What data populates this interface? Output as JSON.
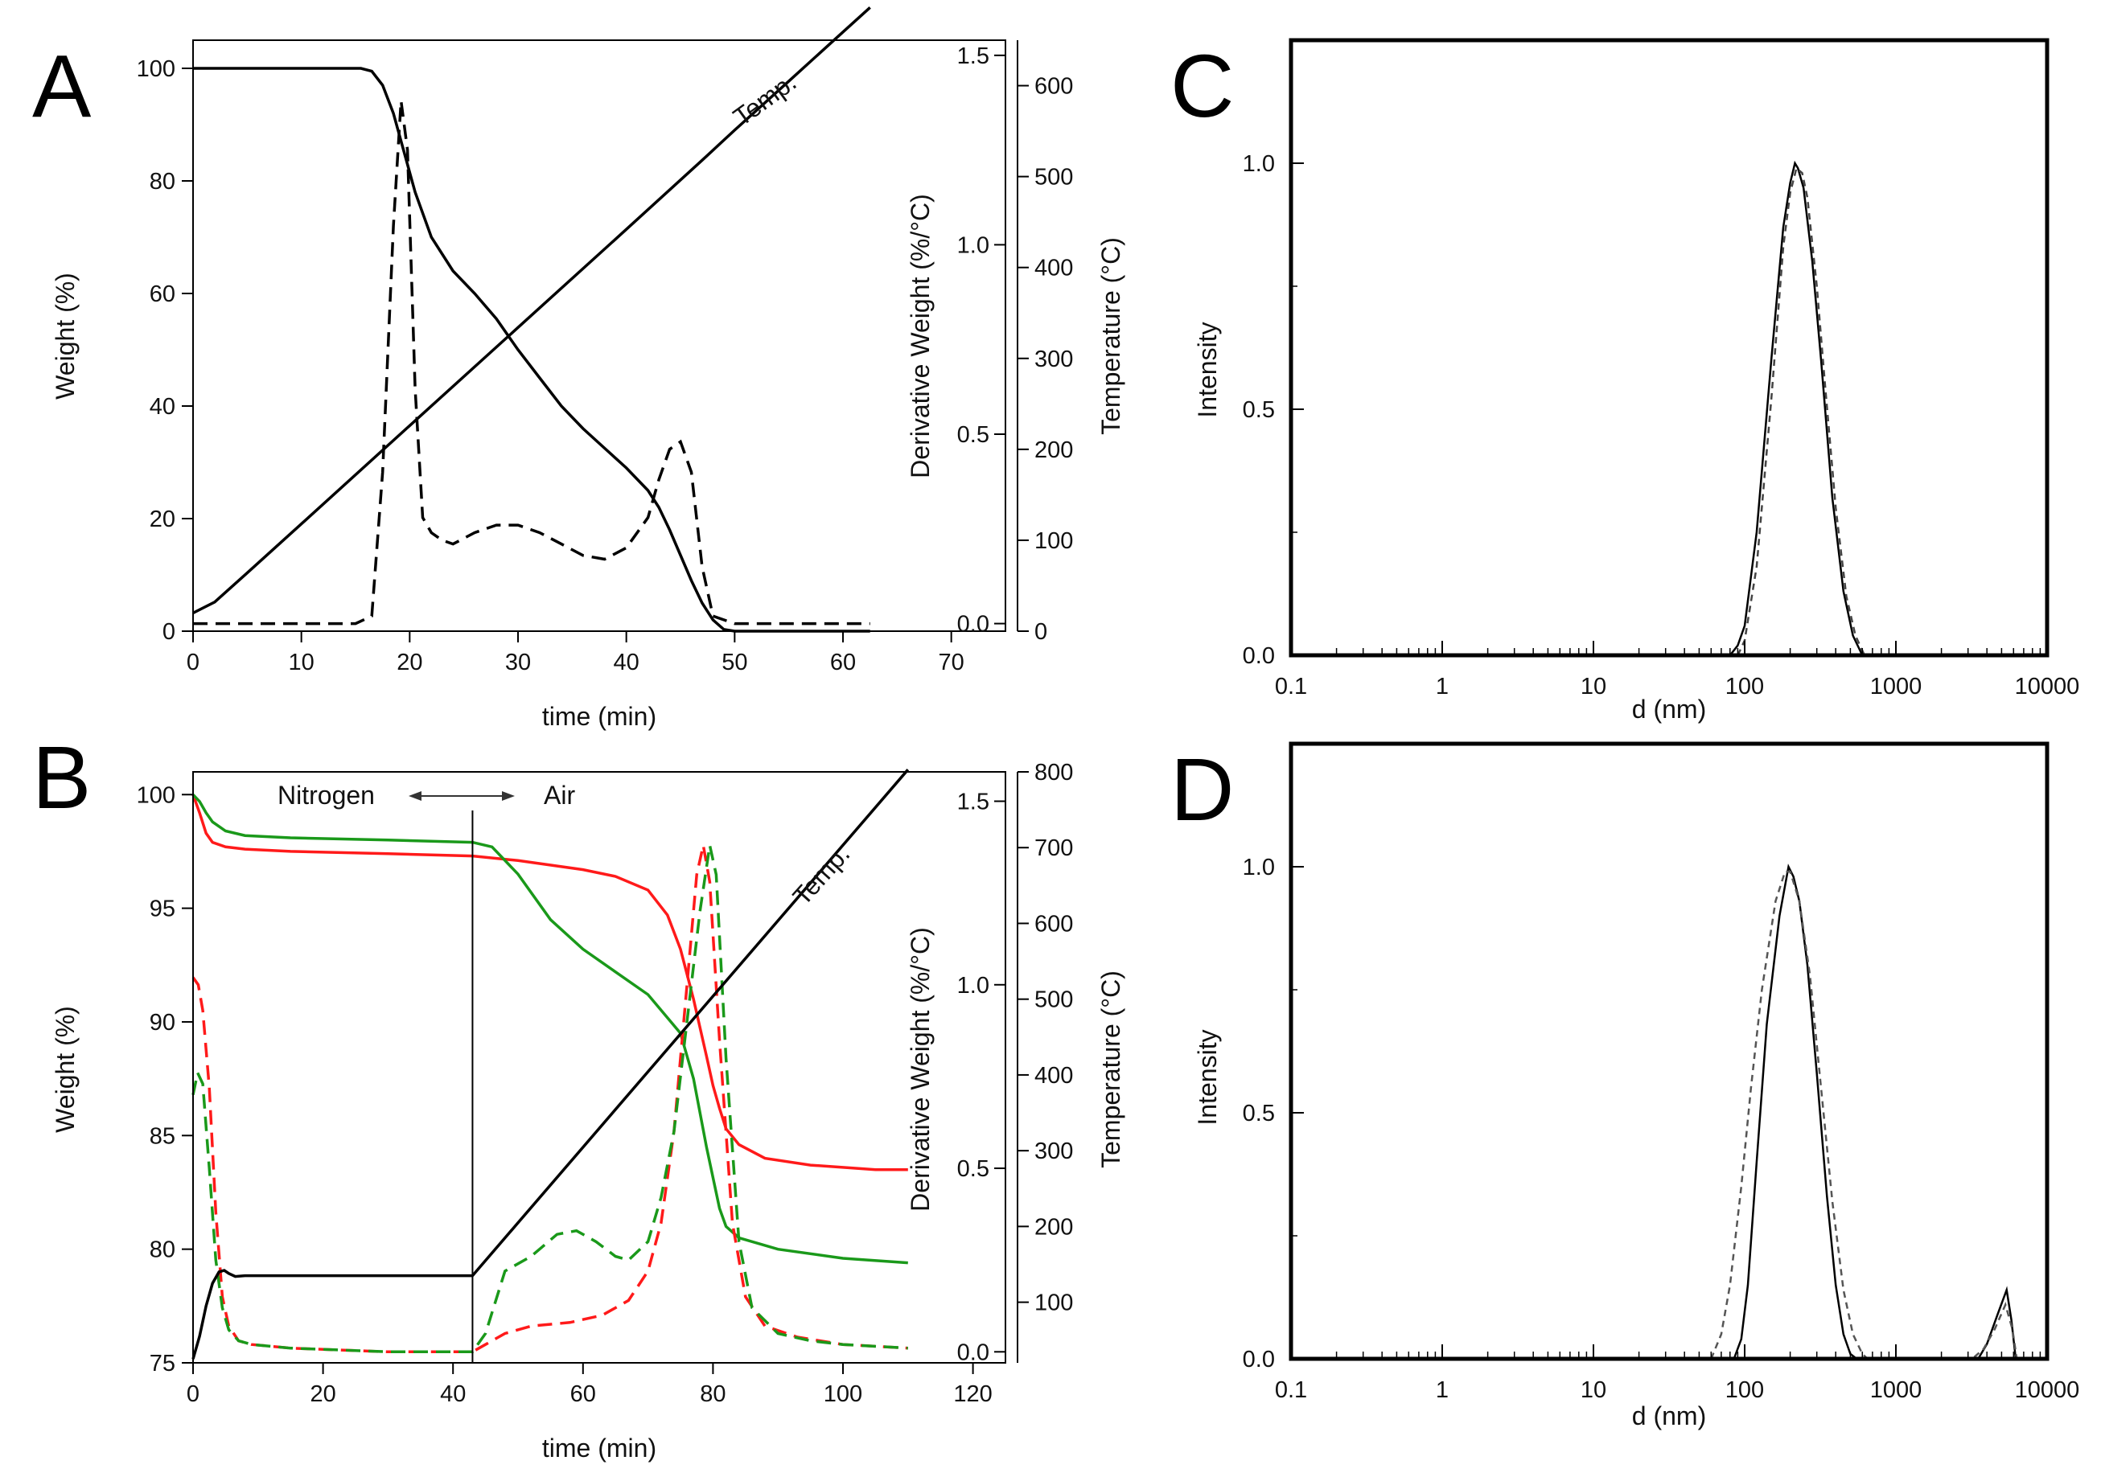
{
  "chart_data": [
    {
      "panel": "A",
      "type": "line",
      "xlabel": "time (min)",
      "ylabel": "Weight (%)",
      "y2label": "Derivative Weight (%/°C)",
      "y3label": "Temperature (°C)",
      "xlim": [
        0,
        75
      ],
      "ylim": [
        0,
        105
      ],
      "y2lim": [
        -0.02,
        1.54
      ],
      "y3lim": [
        0,
        650
      ],
      "xticks": [
        "0",
        "10",
        "20",
        "30",
        "40",
        "50",
        "60",
        "70"
      ],
      "yticks": [
        "0",
        "20",
        "40",
        "60",
        "80",
        "100"
      ],
      "y2ticks": [
        "0.0",
        "0.5",
        "1.0",
        "1.5"
      ],
      "y3ticks": [
        "0",
        "100",
        "200",
        "300",
        "400",
        "500",
        "600"
      ],
      "annotations": [
        "Temp."
      ],
      "series": [
        {
          "name": "Weight",
          "axis": "y",
          "color": "#000000",
          "dash": "solid",
          "x": [
            0,
            5,
            10,
            14,
            15.5,
            16.5,
            17.5,
            18.5,
            19.5,
            20.5,
            22,
            24,
            26,
            28,
            30,
            32,
            34,
            36,
            38,
            40,
            42,
            43,
            44,
            45,
            46,
            47,
            48,
            49,
            50,
            55,
            62.5
          ],
          "values": [
            100,
            100,
            100,
            100,
            100,
            99.5,
            97,
            92,
            85,
            78,
            70,
            64,
            60,
            55.5,
            50,
            45,
            40,
            36,
            32.5,
            29,
            25,
            22,
            18,
            13.5,
            9,
            5,
            2,
            0.3,
            0,
            0,
            0
          ]
        },
        {
          "name": "Derivative Weight",
          "axis": "y2",
          "color": "#000000",
          "dash": "dashed",
          "x": [
            0,
            5,
            10,
            15,
            16.5,
            17.5,
            18.5,
            19.2,
            19.8,
            20.5,
            21.2,
            22,
            23,
            24,
            26,
            28,
            30,
            32,
            34,
            36,
            38,
            40,
            42,
            43,
            44,
            45,
            46,
            47,
            48,
            50,
            55,
            60,
            62.5
          ],
          "values": [
            0,
            0,
            0,
            0,
            0.02,
            0.4,
            1.05,
            1.38,
            1.25,
            0.62,
            0.28,
            0.24,
            0.22,
            0.21,
            0.24,
            0.26,
            0.26,
            0.24,
            0.21,
            0.18,
            0.17,
            0.2,
            0.28,
            0.38,
            0.46,
            0.48,
            0.4,
            0.15,
            0.02,
            0,
            0,
            0,
            0
          ]
        },
        {
          "name": "Temperature",
          "axis": "y3",
          "color": "#000000",
          "dash": "solid",
          "x": [
            0,
            2,
            5,
            10,
            20,
            30,
            40,
            47,
            50,
            55,
            60,
            62.5
          ],
          "values": [
            20,
            32,
            64,
            118,
            226,
            334,
            442,
            518,
            551,
            605,
            659,
            686
          ]
        }
      ]
    },
    {
      "panel": "B",
      "type": "line",
      "xlabel": "time (min)",
      "ylabel": "Weight (%)",
      "y2label": "Derivative Weight (%/°C)",
      "y3label": "Temperature (°C)",
      "xlim": [
        0,
        125
      ],
      "ylim": [
        75,
        101
      ],
      "y2lim": [
        -0.03,
        1.58
      ],
      "y3lim": [
        20,
        800
      ],
      "xticks": [
        "0",
        "20",
        "40",
        "60",
        "80",
        "100",
        "120"
      ],
      "yticks": [
        "75",
        "80",
        "85",
        "90",
        "95",
        "100"
      ],
      "y2ticks": [
        "0.0",
        "0.5",
        "1.0",
        "1.5"
      ],
      "y3ticks": [
        "100",
        "200",
        "300",
        "400",
        "500",
        "600",
        "700",
        "800"
      ],
      "annotations": [
        "Nitrogen",
        "Air",
        "Temp."
      ],
      "switch_time": 43,
      "series": [
        {
          "name": "Weight (red)",
          "axis": "y",
          "color": "#ff1a1a",
          "dash": "solid",
          "x": [
            0,
            1,
            2,
            3,
            5,
            8,
            15,
            30,
            43,
            50,
            60,
            65,
            70,
            73,
            75,
            77,
            79,
            80,
            81,
            82,
            84,
            88,
            95,
            105,
            110
          ],
          "values": [
            100,
            99.2,
            98.3,
            97.9,
            97.7,
            97.6,
            97.5,
            97.4,
            97.3,
            97.1,
            96.7,
            96.4,
            95.8,
            94.7,
            93.2,
            91,
            88.5,
            87.2,
            86.2,
            85.3,
            84.6,
            84,
            83.7,
            83.5,
            83.5
          ]
        },
        {
          "name": "Weight (green)",
          "axis": "y",
          "color": "#1a991a",
          "dash": "solid",
          "x": [
            0,
            1,
            2,
            3,
            5,
            8,
            15,
            30,
            43,
            46,
            50,
            55,
            60,
            65,
            70,
            75,
            77,
            79,
            81,
            82,
            84,
            90,
            100,
            110
          ],
          "values": [
            100,
            99.7,
            99.2,
            98.8,
            98.4,
            98.2,
            98.1,
            98,
            97.9,
            97.7,
            96.5,
            94.5,
            93.2,
            92.2,
            91.2,
            89.5,
            87.5,
            84.5,
            81.8,
            81,
            80.5,
            80,
            79.6,
            79.4
          ]
        },
        {
          "name": "Derivative Weight (red)",
          "axis": "y2",
          "color": "#ff1a1a",
          "dash": "dashed",
          "x": [
            0,
            0.8,
            1.5,
            2.5,
            3.5,
            4.5,
            5.5,
            7,
            9,
            15,
            30,
            43,
            45,
            48,
            52,
            58,
            63,
            67,
            70,
            72,
            74,
            76,
            77.5,
            78.5,
            79.5,
            81,
            83,
            85,
            88,
            93,
            100,
            110
          ],
          "values": [
            1.02,
            1.0,
            0.93,
            0.72,
            0.38,
            0.15,
            0.07,
            0.03,
            0.02,
            0.01,
            0,
            0,
            0.02,
            0.05,
            0.07,
            0.08,
            0.1,
            0.14,
            0.22,
            0.35,
            0.6,
            1.0,
            1.3,
            1.38,
            1.28,
            0.85,
            0.35,
            0.15,
            0.07,
            0.04,
            0.02,
            0.01
          ]
        },
        {
          "name": "Derivative Weight (green)",
          "axis": "y2",
          "color": "#1a991a",
          "dash": "dashed",
          "x": [
            0,
            0.7,
            1.5,
            2.5,
            3.5,
            4.5,
            5.5,
            7,
            9,
            15,
            30,
            43,
            45,
            48,
            52,
            56,
            59,
            62,
            65,
            67,
            70,
            72,
            74,
            76,
            78,
            79.5,
            80.5,
            82,
            84,
            86,
            90,
            95,
            100,
            110
          ],
          "values": [
            0.7,
            0.76,
            0.73,
            0.5,
            0.25,
            0.12,
            0.06,
            0.03,
            0.02,
            0.01,
            0,
            0,
            0.05,
            0.22,
            0.26,
            0.32,
            0.33,
            0.3,
            0.26,
            0.25,
            0.3,
            0.42,
            0.6,
            0.9,
            1.2,
            1.38,
            1.3,
            0.8,
            0.3,
            0.12,
            0.05,
            0.03,
            0.02,
            0.01
          ]
        },
        {
          "name": "Temperature",
          "axis": "y3",
          "color": "#000000",
          "dash": "solid",
          "x": [
            0,
            1,
            2,
            3,
            4,
            4.8,
            5.5,
            6.5,
            8,
            12,
            20,
            43,
            110
          ],
          "values": [
            25,
            55,
            95,
            125,
            140,
            142,
            138,
            134,
            135,
            135,
            135,
            135,
            803
          ]
        }
      ]
    },
    {
      "panel": "C",
      "type": "line",
      "xscale": "log",
      "xlabel": "d (nm)",
      "ylabel": "Intensity",
      "xlim": [
        0.1,
        10000
      ],
      "ylim": [
        0,
        1.25
      ],
      "xticks": [
        "0.1",
        "1",
        "10",
        "100",
        "1000",
        "10000"
      ],
      "yticks": [
        "0.0",
        "0.5",
        "1.0"
      ],
      "series": [
        {
          "name": "solid",
          "color": "#000000",
          "dash": "solid",
          "x": [
            80,
            90,
            100,
            120,
            150,
            180,
            200,
            215,
            225,
            245,
            280,
            320,
            380,
            450,
            520,
            600,
            650
          ],
          "values": [
            0,
            0.02,
            0.06,
            0.25,
            0.6,
            0.87,
            0.96,
            1.0,
            0.99,
            0.95,
            0.8,
            0.6,
            0.32,
            0.13,
            0.04,
            0,
            0
          ]
        },
        {
          "name": "dashed",
          "color": "#444444",
          "dash": "dashed",
          "x": [
            90,
            100,
            120,
            150,
            180,
            200,
            220,
            240,
            260,
            300,
            340,
            400,
            470,
            540,
            620,
            680
          ],
          "values": [
            0,
            0.03,
            0.18,
            0.52,
            0.83,
            0.94,
            0.99,
            0.98,
            0.93,
            0.75,
            0.55,
            0.3,
            0.12,
            0.04,
            0,
            0
          ]
        }
      ]
    },
    {
      "panel": "D",
      "type": "line",
      "xscale": "log",
      "xlabel": "d (nm)",
      "ylabel": "Intensity",
      "xlim": [
        0.1,
        10000
      ],
      "ylim": [
        0,
        1.25
      ],
      "xticks": [
        "0.1",
        "1",
        "10",
        "100",
        "1000",
        "10000"
      ],
      "yticks": [
        "0.0",
        "0.5",
        "1.0"
      ],
      "series": [
        {
          "name": "solid",
          "color": "#000000",
          "dash": "solid",
          "x": [
            85,
            95,
            105,
            120,
            140,
            170,
            195,
            210,
            230,
            260,
            300,
            350,
            400,
            450,
            500,
            550,
            3500,
            4000,
            4700,
            5400,
            5800,
            6200
          ],
          "values": [
            0,
            0.04,
            0.15,
            0.4,
            0.68,
            0.9,
            1.0,
            0.98,
            0.93,
            0.8,
            0.58,
            0.33,
            0.15,
            0.05,
            0.01,
            0,
            0,
            0.03,
            0.09,
            0.14,
            0.08,
            0
          ]
        },
        {
          "name": "dashed",
          "color": "#555555",
          "dash": "dashed",
          "x": [
            60,
            70,
            80,
            95,
            110,
            130,
            160,
            185,
            200,
            230,
            270,
            320,
            380,
            450,
            520,
            600,
            650,
            3200,
            3800,
            4500,
            5300,
            5900,
            6300
          ],
          "values": [
            0,
            0.05,
            0.15,
            0.35,
            0.55,
            0.75,
            0.93,
            0.99,
            0.99,
            0.93,
            0.78,
            0.55,
            0.32,
            0.14,
            0.05,
            0.01,
            0,
            0,
            0.02,
            0.06,
            0.11,
            0.06,
            0
          ]
        }
      ]
    }
  ]
}
